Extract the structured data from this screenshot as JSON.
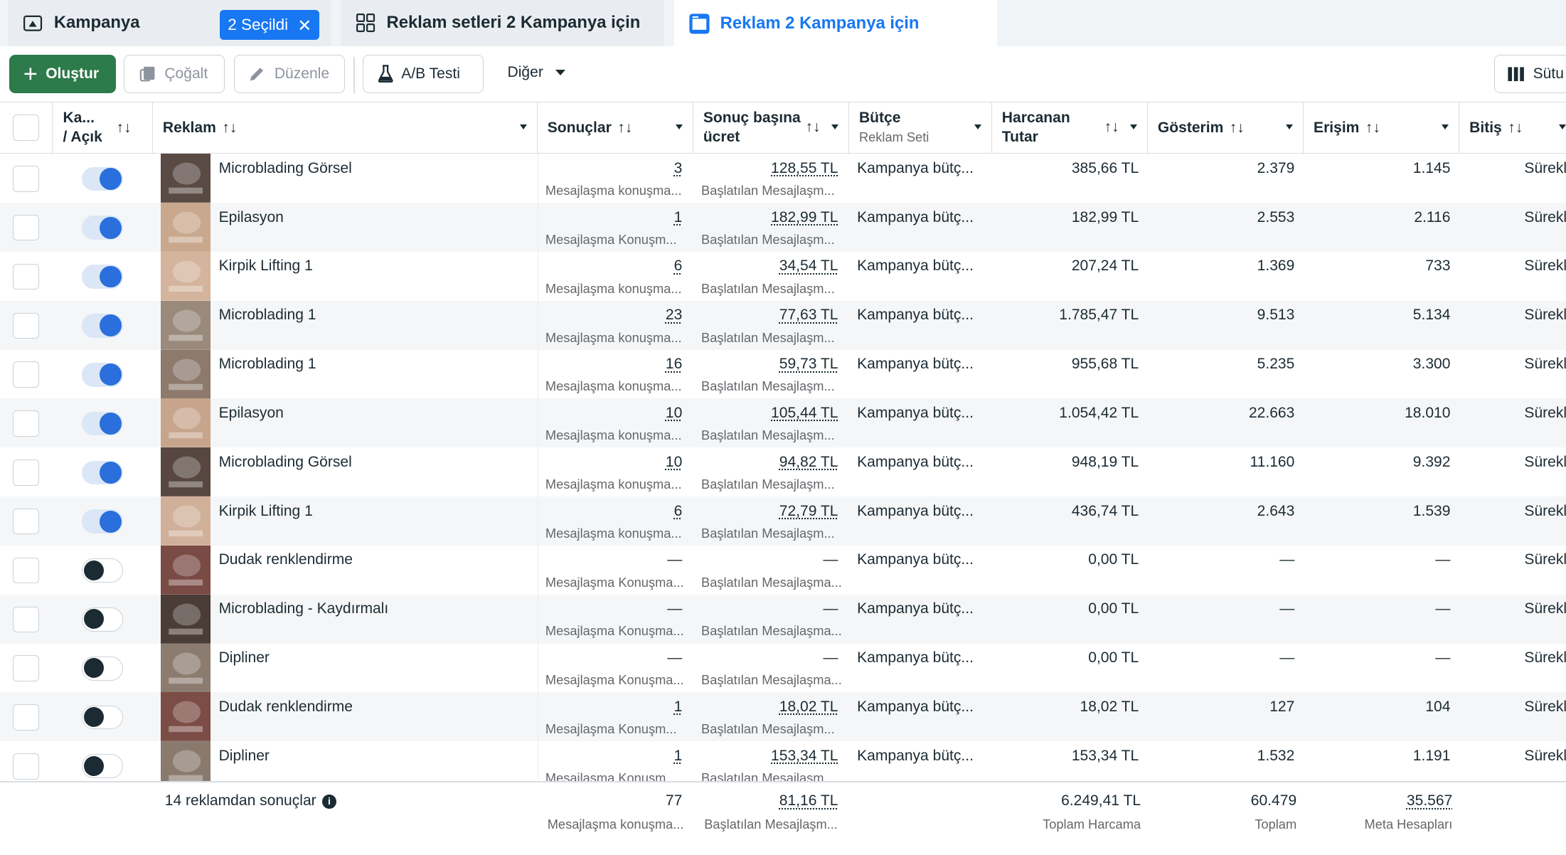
{
  "tabs": [
    {
      "label": "Kampanya",
      "icon": "campaign-folder-icon"
    },
    {
      "label": "Reklam setleri 2 Kampanya için",
      "icon": "grid-icon"
    },
    {
      "label": "Reklam 2 Kampanya için",
      "icon": "ad-window-icon"
    }
  ],
  "selection_badge": {
    "label": "2 Seçildi",
    "close": "✕"
  },
  "toolbar": {
    "create": "Oluştur",
    "duplicate": "Çoğalt",
    "edit": "Düzenle",
    "ab_test": "A/B Testi",
    "more": "Diğer",
    "columns": "Sütu"
  },
  "columns": {
    "toggle": {
      "line1": "Ka...",
      "line2": "/ Açık"
    },
    "ad": "Reklam",
    "results": "Sonuçlar",
    "cost_per_result": {
      "line1": "Sonuç başına",
      "line2": "ücret"
    },
    "budget": {
      "line1": "Bütçe",
      "sub": "Reklam Seti"
    },
    "spent": {
      "line1": "Harcanan",
      "line2": "Tutar"
    },
    "impressions": "Gösterim",
    "reach": "Erişim",
    "end": "Bitiş",
    "sort_glyph": "↑↓"
  },
  "rows": [
    {
      "name": "Microblading Görsel",
      "on": true,
      "results": "3",
      "results_sub": "Mesajlaşma konuşma...",
      "cpr": "128,55 TL",
      "cpr_sub": "Başlatılan Mesajlaşm...",
      "budget": "Kampanya bütç...",
      "spent": "385,66 TL",
      "impr": "2.379",
      "reach": "1.145",
      "end": "Sürekl",
      "thumb": "#5a4a44"
    },
    {
      "name": "Epilasyon",
      "on": true,
      "results": "1",
      "results_sub": "Mesajlaşma Konuşm...",
      "cpr": "182,99 TL",
      "cpr_sub": "Başlatılan Mesajlaşm...",
      "budget": "Kampanya bütç...",
      "spent": "182,99 TL",
      "impr": "2.553",
      "reach": "2.116",
      "end": "Sürekl",
      "thumb": "#c9a88e"
    },
    {
      "name": "Kirpik Lifting 1",
      "on": true,
      "results": "6",
      "results_sub": "Mesajlaşma konuşma...",
      "cpr": "34,54 TL",
      "cpr_sub": "Başlatılan Mesajlaşm...",
      "budget": "Kampanya bütç...",
      "spent": "207,24 TL",
      "impr": "1.369",
      "reach": "733",
      "end": "Sürekl",
      "thumb": "#d4b49c"
    },
    {
      "name": "Microblading 1",
      "on": true,
      "results": "23",
      "results_sub": "Mesajlaşma konuşma...",
      "cpr": "77,63 TL",
      "cpr_sub": "Başlatılan Mesajlaşm...",
      "budget": "Kampanya bütç...",
      "spent": "1.785,47 TL",
      "impr": "9.513",
      "reach": "5.134",
      "end": "Sürekl",
      "thumb": "#9a8a7c"
    },
    {
      "name": "Microblading 1",
      "on": true,
      "results": "16",
      "results_sub": "Mesajlaşma konuşma...",
      "cpr": "59,73 TL",
      "cpr_sub": "Başlatılan Mesajlaşm...",
      "budget": "Kampanya bütç...",
      "spent": "955,68 TL",
      "impr": "5.235",
      "reach": "3.300",
      "end": "Sürekl",
      "thumb": "#8d7a6c"
    },
    {
      "name": "Epilasyon",
      "on": true,
      "results": "10",
      "results_sub": "Mesajlaşma konuşma...",
      "cpr": "105,44 TL",
      "cpr_sub": "Başlatılan Mesajlaşm...",
      "budget": "Kampanya bütç...",
      "spent": "1.054,42 TL",
      "impr": "22.663",
      "reach": "18.010",
      "end": "Sürekl",
      "thumb": "#c7a58c"
    },
    {
      "name": "Microblading Görsel",
      "on": true,
      "results": "10",
      "results_sub": "Mesajlaşma konuşma...",
      "cpr": "94,82 TL",
      "cpr_sub": "Başlatılan Mesajlaşm...",
      "budget": "Kampanya bütç...",
      "spent": "948,19 TL",
      "impr": "11.160",
      "reach": "9.392",
      "end": "Sürekl",
      "thumb": "#574740"
    },
    {
      "name": "Kirpik Lifting 1",
      "on": true,
      "results": "6",
      "results_sub": "Mesajlaşma konuşma...",
      "cpr": "72,79 TL",
      "cpr_sub": "Başlatılan Mesajlaşm...",
      "budget": "Kampanya bütç...",
      "spent": "436,74 TL",
      "impr": "2.643",
      "reach": "1.539",
      "end": "Sürekl",
      "thumb": "#d1b09a"
    },
    {
      "name": "Dudak renklendirme",
      "on": false,
      "results": "—",
      "results_sub": "Mesajlaşma Konuşma...",
      "cpr": "—",
      "cpr_sub": "Başlatılan Mesajlaşma...",
      "budget": "Kampanya bütç...",
      "spent": "0,00 TL",
      "impr": "—",
      "reach": "—",
      "end": "Sürekl",
      "thumb": "#7a4a44"
    },
    {
      "name": "Microblading - Kaydırmalı",
      "on": false,
      "results": "—",
      "results_sub": "Mesajlaşma Konuşma...",
      "cpr": "—",
      "cpr_sub": "Başlatılan Mesajlaşma...",
      "budget": "Kampanya bütç...",
      "spent": "0,00 TL",
      "impr": "—",
      "reach": "—",
      "end": "Sürekl",
      "thumb": "#4a3c36"
    },
    {
      "name": "Dipliner",
      "on": false,
      "results": "—",
      "results_sub": "Mesajlaşma Konuşma...",
      "cpr": "—",
      "cpr_sub": "Başlatılan Mesajlaşma...",
      "budget": "Kampanya bütç...",
      "spent": "0,00 TL",
      "impr": "—",
      "reach": "—",
      "end": "Sürekl",
      "thumb": "#8c7c70"
    },
    {
      "name": "Dudak renklendirme",
      "on": false,
      "results": "1",
      "results_sub": "Mesajlaşma Konuşm...",
      "cpr": "18,02 TL",
      "cpr_sub": "Başlatılan Mesajlaşm...",
      "budget": "Kampanya bütç...",
      "spent": "18,02 TL",
      "impr": "127",
      "reach": "104",
      "end": "Sürekl",
      "thumb": "#7c4c46"
    },
    {
      "name": "Dipliner",
      "on": false,
      "results": "1",
      "results_sub": "Mesajlaşma Konuşm...",
      "cpr": "153,34 TL",
      "cpr_sub": "Başlatılan Mesajlaşm...",
      "budget": "Kampanya bütç...",
      "spent": "153,34 TL",
      "impr": "1.532",
      "reach": "1.191",
      "end": "Sürekl",
      "thumb": "#8a7a6e"
    }
  ],
  "footer": {
    "label": "14 reklamdan sonuçlar",
    "results": "77",
    "results_sub": "Mesajlaşma konuşma...",
    "cpr": "81,16 TL",
    "cpr_sub": "Başlatılan Mesajlaşm...",
    "spent": "6.249,41 TL",
    "spent_sub": "Toplam Harcama",
    "impr": "60.479",
    "impr_sub": "Toplam",
    "reach": "35.567",
    "reach_sub": "Meta Hesapları"
  }
}
